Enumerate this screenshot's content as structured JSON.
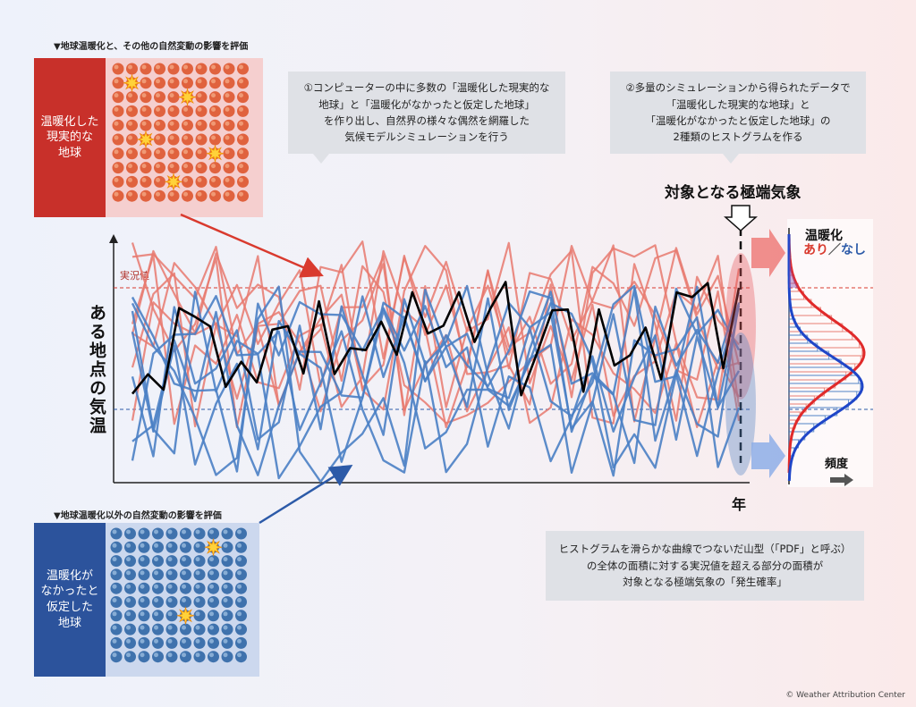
{
  "top_panel": {
    "heading": "▼地球温暖化と、その他の自然変動の影響を評価",
    "label": "温暖化した\n現実的な\n地球"
  },
  "bottom_panel": {
    "heading": "▼地球温暖化以外の自然変動の影響を評価",
    "label": "温暖化が\nなかったと\n仮定した\n地球"
  },
  "callouts": {
    "step1": "①コンピューターの中に多数の「温暖化した現実的な\n地球」と「温暖化がなかったと仮定した地球」\nを作り出し、自然界の様々な偶然を網羅した\n気候モデルシミュレーションを行う",
    "step2": "②多量のシミュレーションから得られたデータで\n「温暖化した現実的な地球」と\n「温暖化がなかったと仮定した地球」の\n2種類のヒストグラムを作る",
    "step3": "ヒストグラムを滑らかな曲線でつないだ山型（「PDF」と呼ぶ）\nの全体の面積に対する実況値を超える部分の面積が\n対象となる極端気象の「発生確率」"
  },
  "chart": {
    "title": "対象となる極端気象",
    "ylabel": "ある地点の気温",
    "xlabel": "年",
    "observed_label": "実況値",
    "histogram_title": "温暖化",
    "legend_with": "あり",
    "legend_sep": "／",
    "legend_without": "なし",
    "histogram_axis": "頻度"
  },
  "colors": {
    "warm": "#d93a2e",
    "warm_line": "#e8796f",
    "cool": "#2c5aa8",
    "cool_line": "#4a7fc4",
    "observed": "#000000"
  },
  "copyright": "© Weather Attribution Center"
}
